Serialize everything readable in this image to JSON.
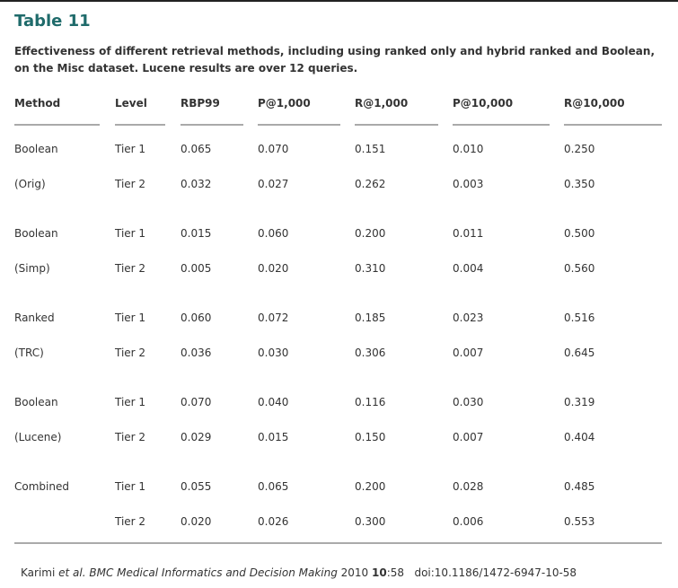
{
  "title": "Table 11",
  "caption": "Effectiveness of different retrieval methods, including using ranked only and hybrid ranked and Boolean, on the Misc dataset. Lucene results are over 12 queries.",
  "columns": [
    "Method",
    "Level",
    "RBP99",
    "P@1,000",
    "R@1,000",
    "P@10,000",
    "R@10,000"
  ],
  "rows": [
    [
      "Boolean",
      "Tier 1",
      "0.065",
      "0.070",
      "0.151",
      "0.010",
      "0.250"
    ],
    [
      "(Orig)",
      "Tier 2",
      "0.032",
      "0.027",
      "0.262",
      "0.003",
      "0.350"
    ],
    [
      "Boolean",
      "Tier 1",
      "0.015",
      "0.060",
      "0.200",
      "0.011",
      "0.500"
    ],
    [
      "(Simp)",
      "Tier 2",
      "0.005",
      "0.020",
      "0.310",
      "0.004",
      "0.560"
    ],
    [
      "Ranked",
      "Tier 1",
      "0.060",
      "0.072",
      "0.185",
      "0.023",
      "0.516"
    ],
    [
      "(TRC)",
      "Tier 2",
      "0.036",
      "0.030",
      "0.306",
      "0.007",
      "0.645"
    ],
    [
      "Boolean",
      "Tier 1",
      "0.070",
      "0.040",
      "0.116",
      "0.030",
      "0.319"
    ],
    [
      "(Lucene)",
      "Tier 2",
      "0.029",
      "0.015",
      "0.150",
      "0.007",
      "0.404"
    ],
    [
      "Combined",
      "Tier 1",
      "0.055",
      "0.065",
      "0.200",
      "0.028",
      "0.485"
    ],
    [
      "",
      "Tier 2",
      "0.020",
      "0.026",
      "0.300",
      "0.006",
      "0.553"
    ]
  ],
  "footer": {
    "authors": "Karimi ",
    "etal": "et al.",
    "journal": "BMC Medical Informatics and Decision Making",
    "year": " 2010 ",
    "volume": "10",
    "issue": ":58",
    "doi": "   doi:10.1186/1472-6947-10-58"
  },
  "colors": {
    "title": "#1f6b6b",
    "text": "#333333",
    "rule": "#aaaaaa"
  }
}
